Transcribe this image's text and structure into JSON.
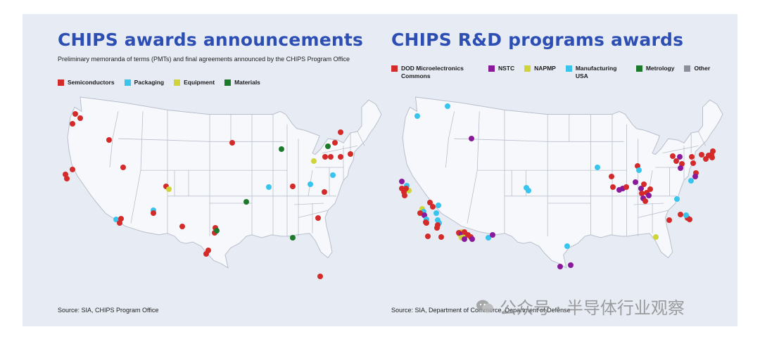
{
  "left": {
    "title": "CHIPS awards announcements",
    "subtitle": "Preliminary memoranda of terms (PMTs) and final agreements announced by the CHIPS Program Office",
    "legend": [
      {
        "label": "Semiconductors",
        "color": "#d42a2a"
      },
      {
        "label": "Packaging",
        "color": "#39c4ee"
      },
      {
        "label": "Equipment",
        "color": "#cfd43b"
      },
      {
        "label": "Materials",
        "color": "#1c7a2b"
      }
    ],
    "source": "Source: SIA, CHIPS Program Office"
  },
  "right": {
    "title": "CHIPS R&D programs awards",
    "legend": [
      {
        "label": "DOD Microelectronics Commons",
        "color": "#d42a2a"
      },
      {
        "label": "NSTC",
        "color": "#8a1a9b"
      },
      {
        "label": "NAPMP",
        "color": "#cfd43b"
      },
      {
        "label": "Manufacturing USA",
        "color": "#39c4ee"
      },
      {
        "label": "Metrology",
        "color": "#1c7a2b"
      },
      {
        "label": "Other",
        "color": "#8e8e9a"
      }
    ],
    "source": "Source: SIA, Department of Commerce, Department of Defense"
  },
  "watermark": "公众号 · 半导体行业观察",
  "map_colors": {
    "land": "#f7f8fb",
    "border": "#b8bfcc",
    "background": "#e6ebf4"
  }
}
